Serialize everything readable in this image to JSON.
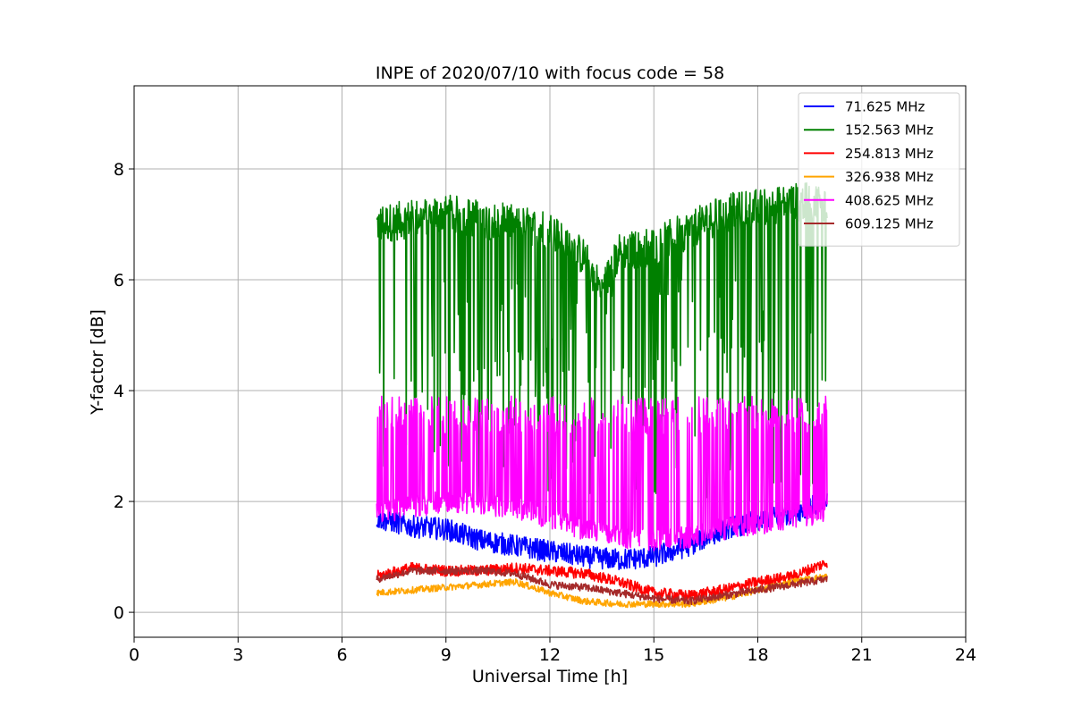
{
  "chart_data": {
    "type": "line",
    "title": "INPE of 2020/07/10 with focus code = 58",
    "xlabel": "Universal Time [h]",
    "ylabel": "Y-factor [dB]",
    "xlim": [
      0,
      24
    ],
    "ylim": [
      -0.45,
      9.5
    ],
    "xticks": [
      0,
      3,
      6,
      9,
      12,
      15,
      18,
      21,
      24
    ],
    "yticks": [
      0,
      2,
      4,
      6,
      8
    ],
    "xtick_labels": [
      "0",
      "3",
      "6",
      "9",
      "12",
      "15",
      "18",
      "21",
      "24"
    ],
    "ytick_labels": [
      "0",
      "2",
      "4",
      "6",
      "8"
    ],
    "grid": true,
    "legend_position": "top-right",
    "series": [
      {
        "name": "  71.625 MHz",
        "color": "#0000ff",
        "x": [
          7.0,
          8.0,
          9.0,
          10.0,
          11.0,
          12.0,
          13.0,
          14.0,
          15.0,
          16.0,
          17.0,
          18.0,
          19.0,
          20.0
        ],
        "y": [
          1.7,
          1.55,
          1.5,
          1.3,
          1.2,
          1.1,
          1.0,
          0.95,
          1.0,
          1.2,
          1.5,
          1.65,
          1.8,
          2.0
        ],
        "noise": 0.2
      },
      {
        "name": "152.563 MHz",
        "color": "#008000",
        "x": [
          7.0,
          8.0,
          9.0,
          10.0,
          11.0,
          12.0,
          13.0,
          13.5,
          14.0,
          15.0,
          16.0,
          17.0,
          18.0,
          19.0,
          20.0
        ],
        "y": [
          7.0,
          7.1,
          7.2,
          7.1,
          7.0,
          6.9,
          6.4,
          5.8,
          6.5,
          6.6,
          6.9,
          7.2,
          7.3,
          7.4,
          7.4
        ],
        "noise": 0.35
      },
      {
        "name": "254.813 MHz",
        "color": "#ff0000",
        "x": [
          7.0,
          8.0,
          9.0,
          10.0,
          11.0,
          12.0,
          13.0,
          14.0,
          15.0,
          16.0,
          17.0,
          18.0,
          19.0,
          20.0
        ],
        "y": [
          0.65,
          0.8,
          0.75,
          0.75,
          0.8,
          0.75,
          0.7,
          0.55,
          0.35,
          0.3,
          0.4,
          0.55,
          0.65,
          0.9
        ],
        "noise": 0.1
      },
      {
        "name": "326.938 MHz",
        "color": "#ffa500",
        "x": [
          7.0,
          8.0,
          9.0,
          10.0,
          11.0,
          12.0,
          13.0,
          14.0,
          15.0,
          16.0,
          17.0,
          18.0,
          19.0,
          20.0
        ],
        "y": [
          0.35,
          0.4,
          0.45,
          0.5,
          0.55,
          0.35,
          0.2,
          0.15,
          0.15,
          0.15,
          0.25,
          0.4,
          0.55,
          0.65
        ],
        "noise": 0.06
      },
      {
        "name": "408.625 MHz",
        "color": "#ff00ff",
        "x": [
          7.0,
          8.0,
          9.0,
          10.0,
          11.0,
          12.0,
          13.0,
          14.0,
          15.0,
          16.0,
          17.0,
          18.0,
          19.0,
          20.0
        ],
        "y": [
          1.8,
          1.9,
          2.0,
          1.95,
          1.9,
          1.7,
          1.5,
          1.35,
          1.3,
          1.35,
          1.5,
          1.6,
          1.7,
          1.8
        ],
        "noise": 0.2
      },
      {
        "name": "609.125 MHz",
        "color": "#a52a2a",
        "x": [
          7.0,
          8.0,
          9.0,
          10.0,
          11.0,
          12.0,
          13.0,
          14.0,
          15.0,
          16.0,
          17.0,
          18.0,
          19.0,
          20.0
        ],
        "y": [
          0.6,
          0.75,
          0.75,
          0.75,
          0.7,
          0.5,
          0.45,
          0.35,
          0.25,
          0.2,
          0.3,
          0.4,
          0.5,
          0.6
        ],
        "noise": 0.07
      }
    ]
  }
}
